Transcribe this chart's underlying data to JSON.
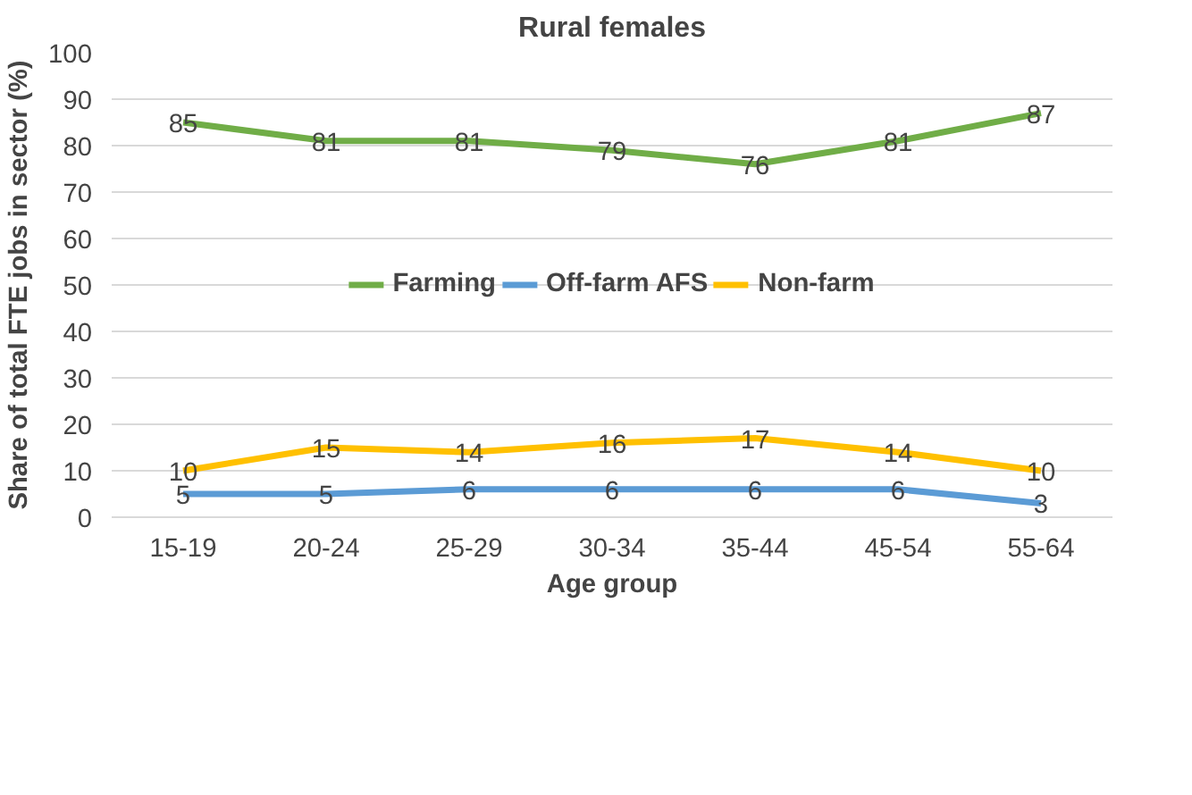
{
  "chart_data": {
    "type": "line",
    "title": "Rural females",
    "xlabel": "Age group",
    "ylabel": "Share of total FTE jobs in sector (%)",
    "categories": [
      "15-19",
      "20-24",
      "25-29",
      "30-34",
      "35-44",
      "45-54",
      "55-64"
    ],
    "series": [
      {
        "name": "Farming",
        "color": "#70ad47",
        "values": [
          85,
          81,
          81,
          79,
          76,
          81,
          87
        ]
      },
      {
        "name": "Off-farm AFS",
        "color": "#5b9bd5",
        "values": [
          5,
          5,
          6,
          6,
          6,
          6,
          3
        ]
      },
      {
        "name": "Non-farm",
        "color": "#ffc000",
        "values": [
          10,
          15,
          14,
          16,
          17,
          14,
          10
        ]
      }
    ],
    "ylim": [
      0,
      100
    ],
    "yticks": [
      0,
      10,
      20,
      30,
      40,
      50,
      60,
      70,
      80,
      90,
      100
    ],
    "grid": "y",
    "legend": "center",
    "data_labels": true,
    "marker": "none",
    "line_style": "solid"
  }
}
